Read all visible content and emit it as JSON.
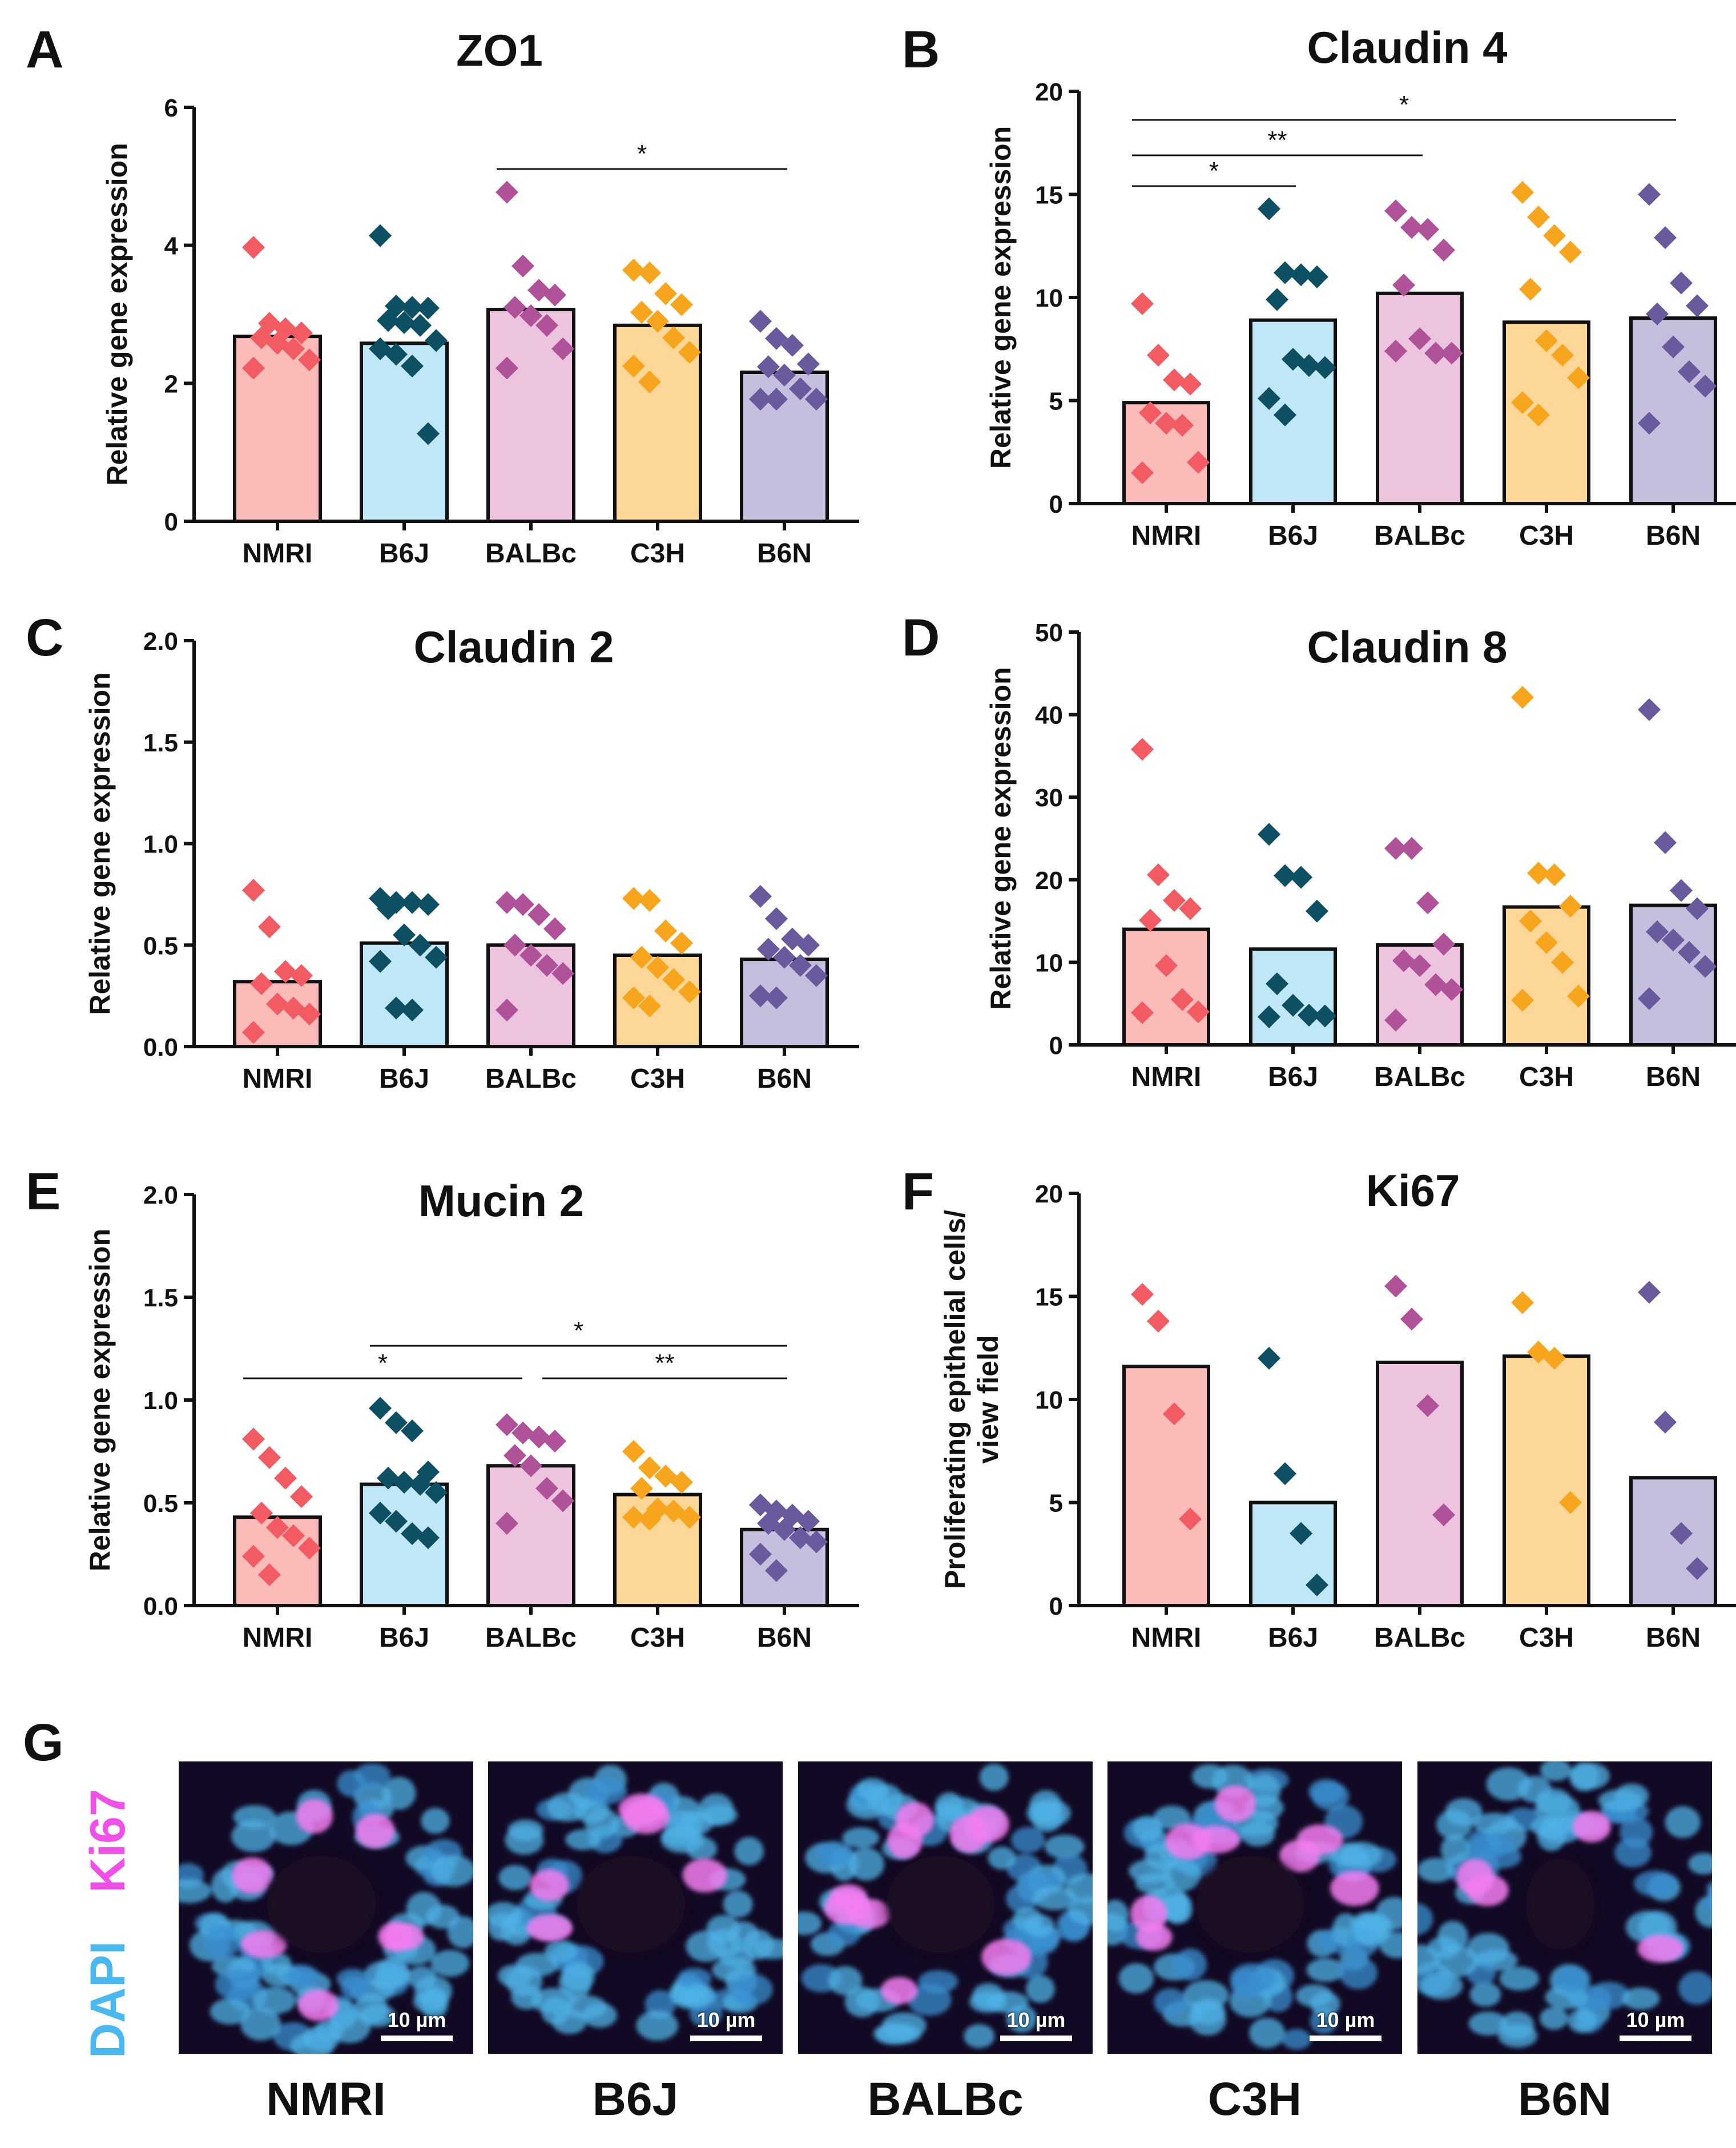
{
  "colors": {
    "NMRI": {
      "fill": "#fbbbb9",
      "point": "#f15b61"
    },
    "B6J": {
      "fill": "#bfe7f8",
      "point": "#0d4f63"
    },
    "BALBc": {
      "fill": "#ecc4dd",
      "point": "#b0529a"
    },
    "C3H": {
      "fill": "#fdd797",
      "point": "#f7a51d"
    },
    "B6N": {
      "fill": "#c4bfdc",
      "point": "#6a5a9d"
    },
    "dapi": "#49b8f0",
    "ki67": "#f050e8"
  },
  "chart_data": [
    {
      "id": "A",
      "type": "bar",
      "title": "ZO1",
      "ylabel": "Relative gene expression",
      "ylabel2": "",
      "categories": [
        "NMRI",
        "B6J",
        "BALBc",
        "C3H",
        "B6N"
      ],
      "ylim": [
        0,
        6
      ],
      "yticks": [
        0,
        2,
        4,
        6
      ],
      "yticklabels": [
        "0",
        "2",
        "4",
        "6"
      ],
      "bars": [
        2.68,
        2.58,
        3.07,
        2.84,
        2.16
      ],
      "points": [
        [
          3.97,
          2.87,
          2.79,
          2.73,
          2.66,
          2.58,
          2.5,
          2.34,
          2.22
        ],
        [
          4.14,
          3.12,
          3.1,
          3.09,
          2.91,
          2.88,
          2.84,
          2.62,
          2.5,
          2.42,
          2.25,
          1.27
        ],
        [
          4.77,
          3.7,
          3.35,
          3.28,
          3.1,
          2.98,
          2.84,
          2.5,
          2.22
        ],
        [
          3.64,
          3.6,
          3.3,
          3.14,
          3.03,
          2.9,
          2.66,
          2.45,
          2.25,
          2.02
        ],
        [
          2.9,
          2.65,
          2.55,
          2.28,
          2.24,
          2.12,
          1.92,
          1.77,
          1.77,
          1.77
        ]
      ],
      "sig": [
        {
          "from": 2,
          "to": 4,
          "level": 1,
          "label": "*"
        }
      ]
    },
    {
      "id": "B",
      "type": "bar",
      "title": "Claudin 4",
      "ylabel": "Relative gene expression",
      "ylabel2": "",
      "categories": [
        "NMRI",
        "B6J",
        "BALBc",
        "C3H",
        "B6N"
      ],
      "ylim": [
        0,
        20
      ],
      "yticks": [
        0,
        5,
        10,
        15,
        20
      ],
      "yticklabels": [
        "0",
        "5",
        "10",
        "15",
        "20"
      ],
      "bars": [
        4.9,
        8.9,
        10.2,
        8.8,
        9.0
      ],
      "points": [
        [
          9.7,
          7.2,
          6.0,
          5.8,
          4.4,
          3.9,
          3.8,
          2.0,
          1.5
        ],
        [
          14.3,
          11.2,
          11.1,
          11.0,
          9.9,
          7.0,
          6.7,
          6.6,
          5.1,
          4.3
        ],
        [
          14.2,
          13.4,
          13.3,
          12.3,
          10.6,
          8.0,
          7.3,
          7.3,
          7.4
        ],
        [
          15.1,
          13.9,
          13.0,
          12.2,
          10.4,
          7.9,
          7.2,
          6.1,
          4.9,
          4.3
        ],
        [
          15.0,
          12.9,
          10.7,
          9.6,
          9.2,
          7.6,
          6.4,
          5.7,
          3.9
        ]
      ],
      "sig": [
        {
          "from": 0,
          "to": 1,
          "level": 1,
          "label": "*"
        },
        {
          "from": 0,
          "to": 2,
          "level": 2,
          "label": "**"
        },
        {
          "from": 0,
          "to": 4,
          "level": 3,
          "label": "*"
        }
      ]
    },
    {
      "id": "C",
      "type": "bar",
      "title": "Claudin 2",
      "ylabel": "Relative gene expression",
      "ylabel2": "",
      "categories": [
        "NMRI",
        "B6J",
        "BALBc",
        "C3H",
        "B6N"
      ],
      "ylim": [
        0,
        2.0
      ],
      "yticks": [
        0,
        0.5,
        1.0,
        1.5,
        2.0
      ],
      "yticklabels": [
        "0.0",
        "0.5",
        "1.0",
        "1.5",
        "2.0"
      ],
      "bars": [
        0.32,
        0.51,
        0.5,
        0.45,
        0.43
      ],
      "points": [
        [
          0.77,
          0.59,
          0.37,
          0.35,
          0.31,
          0.21,
          0.19,
          0.16,
          0.07
        ],
        [
          0.73,
          0.71,
          0.71,
          0.7,
          0.68,
          0.55,
          0.5,
          0.44,
          0.42,
          0.19,
          0.18
        ],
        [
          0.71,
          0.7,
          0.65,
          0.58,
          0.5,
          0.45,
          0.4,
          0.36,
          0.18
        ],
        [
          0.73,
          0.72,
          0.57,
          0.51,
          0.44,
          0.39,
          0.33,
          0.27,
          0.24,
          0.2
        ],
        [
          0.74,
          0.63,
          0.53,
          0.5,
          0.48,
          0.44,
          0.4,
          0.35,
          0.25,
          0.24
        ]
      ],
      "sig": []
    },
    {
      "id": "D",
      "type": "bar",
      "title": "Claudin 8",
      "ylabel": "Relative gene expression",
      "ylabel2": "",
      "categories": [
        "NMRI",
        "B6J",
        "BALBc",
        "C3H",
        "B6N"
      ],
      "ylim": [
        0,
        50
      ],
      "yticks": [
        0,
        10,
        20,
        30,
        40,
        50
      ],
      "yticklabels": [
        "0",
        "10",
        "20",
        "30",
        "40",
        "50"
      ],
      "bars": [
        14.0,
        11.6,
        12.1,
        16.7,
        16.9
      ],
      "points": [
        [
          35.8,
          20.6,
          17.5,
          16.5,
          15.1,
          9.6,
          5.5,
          4.0,
          3.9
        ],
        [
          25.5,
          20.5,
          20.3,
          16.2,
          7.4,
          4.8,
          3.6,
          3.5,
          3.4
        ],
        [
          23.8,
          23.8,
          17.2,
          12.2,
          10.2,
          9.6,
          7.3,
          6.7,
          3.0
        ],
        [
          42.1,
          20.8,
          20.6,
          16.8,
          15.0,
          12.4,
          10.0,
          5.9,
          5.4
        ],
        [
          40.6,
          24.5,
          18.7,
          16.5,
          13.7,
          12.7,
          11.2,
          9.5,
          5.6
        ]
      ],
      "sig": []
    },
    {
      "id": "E",
      "type": "bar",
      "title": "Mucin 2",
      "ylabel": "Relative gene expression",
      "ylabel2": "",
      "categories": [
        "NMRI",
        "B6J",
        "BALBc",
        "C3H",
        "B6N"
      ],
      "ylim": [
        0,
        2.0
      ],
      "yticks": [
        0,
        0.5,
        1.0,
        1.5,
        2.0
      ],
      "yticklabels": [
        "0.0",
        "0.5",
        "1.0",
        "1.5",
        "2.0"
      ],
      "bars": [
        0.43,
        0.59,
        0.68,
        0.54,
        0.37
      ],
      "points": [
        [
          0.81,
          0.72,
          0.62,
          0.53,
          0.45,
          0.38,
          0.34,
          0.28,
          0.24,
          0.15
        ],
        [
          0.96,
          0.89,
          0.85,
          0.65,
          0.62,
          0.6,
          0.59,
          0.55,
          0.45,
          0.41,
          0.35,
          0.33
        ],
        [
          0.88,
          0.84,
          0.82,
          0.8,
          0.73,
          0.68,
          0.57,
          0.51,
          0.4
        ],
        [
          0.75,
          0.67,
          0.63,
          0.6,
          0.57,
          0.47,
          0.46,
          0.43,
          0.43,
          0.42
        ],
        [
          0.49,
          0.46,
          0.44,
          0.41,
          0.4,
          0.37,
          0.33,
          0.31,
          0.25,
          0.17
        ]
      ],
      "sig": [
        {
          "from": 0,
          "to": 2,
          "level": 1,
          "label": "*"
        },
        {
          "from": 2,
          "to": 4,
          "level": 1,
          "label": "**"
        },
        {
          "from": 1,
          "to": 4,
          "level": 2,
          "label": "*"
        }
      ]
    },
    {
      "id": "F",
      "type": "bar",
      "title": "Ki67",
      "ylabel": "Proliferating epithelial cells/",
      "ylabel2": "view field",
      "categories": [
        "NMRI",
        "B6J",
        "BALBc",
        "C3H",
        "B6N"
      ],
      "ylim": [
        0,
        20
      ],
      "yticks": [
        0,
        5,
        10,
        15,
        20
      ],
      "yticklabels": [
        "0",
        "5",
        "10",
        "15",
        "20"
      ],
      "bars": [
        11.6,
        5.0,
        11.8,
        12.1,
        6.2
      ],
      "points": [
        [
          15.1,
          13.8,
          9.3,
          4.2
        ],
        [
          12.0,
          6.4,
          3.5,
          1.0
        ],
        [
          15.5,
          13.9,
          9.7,
          4.4
        ],
        [
          14.7,
          12.3,
          12.0,
          5.0
        ],
        [
          15.2,
          8.9,
          3.5,
          1.8
        ]
      ],
      "sig": []
    }
  ],
  "panel_g": {
    "letter": "G",
    "legend_dapi": "DAPI",
    "legend_ki67": "Ki67",
    "scale_label": "10 µm",
    "strains": [
      "NMRI",
      "B6J",
      "BALBc",
      "C3H",
      "B6N"
    ]
  }
}
